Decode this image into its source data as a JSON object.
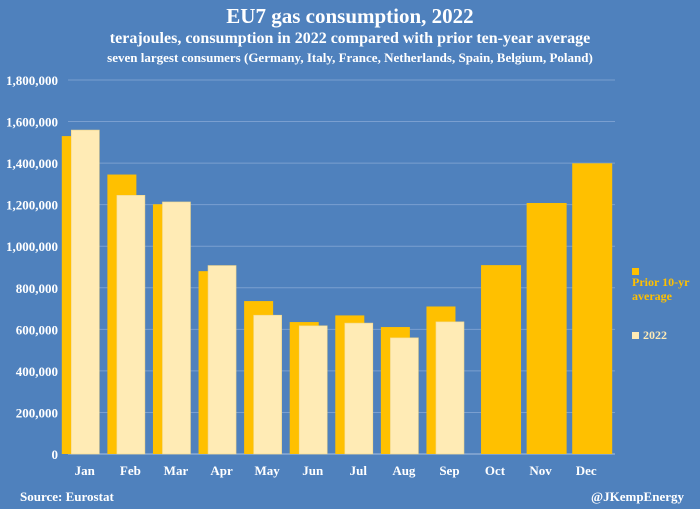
{
  "chart_data": {
    "type": "bar",
    "title": "EU7 gas consumption, 2022",
    "subtitle": "terajoules, consumption in 2022 compared with prior ten-year average",
    "subtitle2": "seven largest consumers (Germany, Italy, France, Netherlands, Spain, Belgium, Poland)",
    "categories": [
      "Jan",
      "Feb",
      "Mar",
      "Apr",
      "May",
      "Jun",
      "Jul",
      "Aug",
      "Sep",
      "Oct",
      "Nov",
      "Dec"
    ],
    "series": [
      {
        "name": "Prior 10-yr average",
        "color": "#ffc000",
        "values": [
          1530000,
          1345000,
          1202000,
          880000,
          736000,
          635000,
          667000,
          611000,
          710000,
          909000,
          1208000,
          1399000
        ]
      },
      {
        "name": "2022",
        "color": "#ffebb5",
        "values": [
          1559000,
          1245000,
          1213000,
          907000,
          668000,
          617000,
          630000,
          559000,
          636000,
          null,
          null,
          null
        ]
      }
    ],
    "ylim": [
      0,
      1800000
    ],
    "yticks": [
      "0",
      "200,000",
      "400,000",
      "600,000",
      "800,000",
      "1,000,000",
      "1,200,000",
      "1,400,000",
      "1,600,000",
      "1,800,000"
    ],
    "grid": true,
    "legend_placement": "right",
    "background": "#4f81bd"
  },
  "footer": {
    "source": "Source: Eurostat",
    "credit": "@JKempEnergy"
  }
}
